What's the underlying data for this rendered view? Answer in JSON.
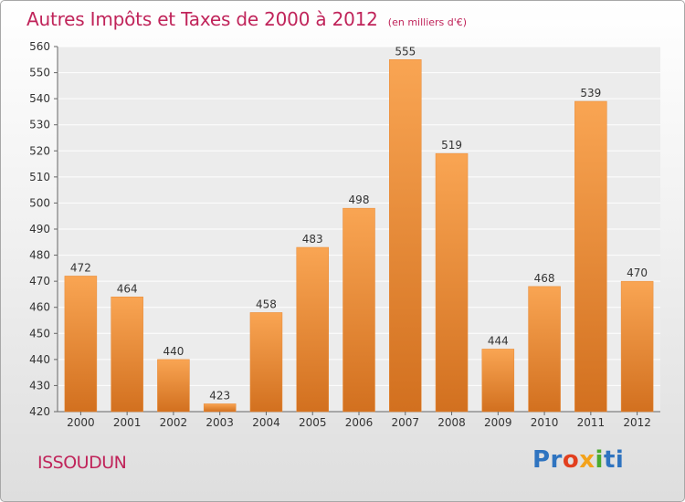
{
  "header": {
    "title": "Autres Impôts et Taxes de 2000 à 2012",
    "subtitle": "(en milliers d'€)"
  },
  "footer": {
    "city": "ISSOUDUN",
    "logo_text": "Proxiti"
  },
  "colors": {
    "accent": "#c0245a",
    "bar_light": "#f9a553",
    "bar_dark": "#d2701f"
  },
  "chart_data": {
    "type": "bar",
    "categories": [
      "2000",
      "2001",
      "2002",
      "2003",
      "2004",
      "2005",
      "2006",
      "2007",
      "2008",
      "2009",
      "2010",
      "2011",
      "2012"
    ],
    "values": [
      472,
      464,
      440,
      423,
      458,
      483,
      498,
      555,
      519,
      444,
      468,
      539,
      470
    ],
    "ylim": [
      420,
      560
    ],
    "yticks": [
      420,
      430,
      440,
      450,
      460,
      470,
      480,
      490,
      500,
      510,
      520,
      530,
      540,
      550,
      560
    ],
    "grid": true,
    "data_labels": true
  }
}
